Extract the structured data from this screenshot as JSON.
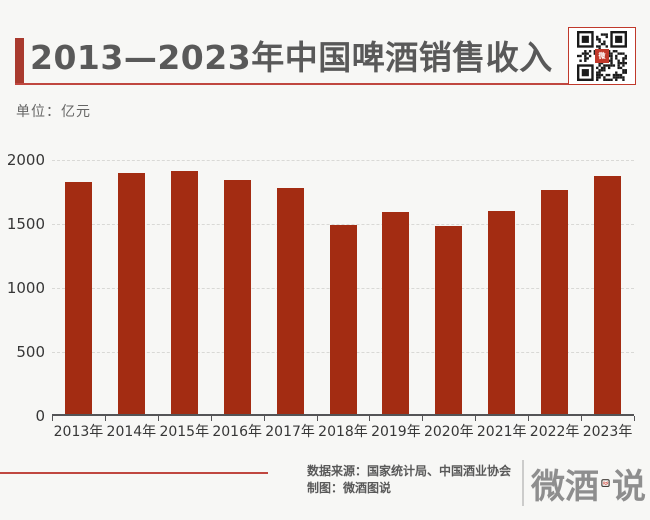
{
  "page": {
    "background": "#f7f7f5"
  },
  "header": {
    "title": "2013—2023年中国啤酒销售收入",
    "unit_label": "单位：亿元",
    "qr_center_glyph": "微"
  },
  "footer": {
    "source_line": "数据来源：国家统计局、中国酒业协会",
    "credit_line": "制图：微酒图说",
    "logo": {
      "left": "微酒",
      "right": "说",
      "icon": "wave-chart-icon"
    }
  },
  "colors": {
    "bar": "#a32c12",
    "accent_bar": "#a93a2e",
    "thin_red_line": "#c0473f",
    "title_text": "#595959",
    "axis_text": "#373737",
    "background": "#f7f7f5"
  },
  "chart_data": {
    "type": "bar",
    "title": "2013—2023年中国啤酒销售收入",
    "unit": "亿元",
    "categories": [
      "2013年",
      "2014年",
      "2015年",
      "2016年",
      "2017年",
      "2018年",
      "2019年",
      "2020年",
      "2021年",
      "2022年",
      "2023年"
    ],
    "values": [
      1814,
      1886,
      1897,
      1830,
      1766,
      1473,
      1582,
      1469,
      1585,
      1751,
      1863
    ],
    "ylim": [
      0,
      2000
    ],
    "yticks": [
      0,
      500,
      1000,
      1500,
      2000
    ],
    "xlabel": "",
    "ylabel": "亿元",
    "grid": "horizontal-dashed",
    "legend": "none",
    "bar_color": "#a32c12"
  }
}
